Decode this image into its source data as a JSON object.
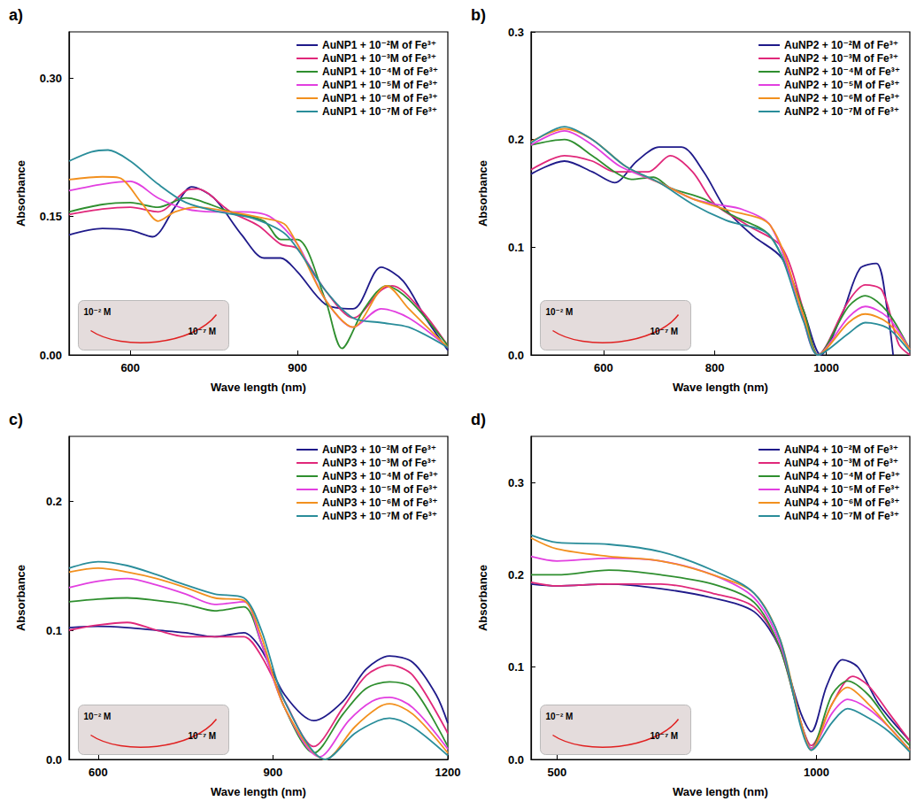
{
  "chart_data": [
    {
      "type": "line",
      "title": "a)",
      "x_label": "Wave length (nm)",
      "y_label": "Absorbance",
      "xlim": [
        490,
        1170
      ],
      "xticks": [
        600,
        900
      ],
      "ylim": [
        0,
        0.35
      ],
      "yticks": [
        {
          "value": 0,
          "label": "0.00"
        },
        0.15,
        {
          "value": 0.3,
          "label": "0.30"
        }
      ],
      "legend": "upper right",
      "grid": false,
      "annotations": [
        "10⁻² M",
        "10⁻⁷ M"
      ],
      "series": [
        {
          "name": "AuNP1 + 10⁻²M of Fe³⁺",
          "color": "#1f1a8a",
          "x": [
            490,
            550,
            600,
            640,
            680,
            710,
            750,
            800,
            840,
            870,
            900,
            950,
            1000,
            1050,
            1090,
            1130,
            1170
          ],
          "values": [
            0.13,
            0.137,
            0.135,
            0.128,
            0.16,
            0.182,
            0.17,
            0.13,
            0.105,
            0.105,
            0.09,
            0.055,
            0.05,
            0.095,
            0.08,
            0.04,
            0.005
          ]
        },
        {
          "name": "AuNP1 + 10⁻³M of Fe³⁺",
          "color": "#e0287a",
          "x": [
            490,
            550,
            600,
            650,
            700,
            720,
            780,
            830,
            870,
            900,
            950,
            1000,
            1050,
            1070,
            1120,
            1170
          ],
          "values": [
            0.152,
            0.158,
            0.16,
            0.155,
            0.178,
            0.18,
            0.155,
            0.14,
            0.12,
            0.115,
            0.07,
            0.04,
            0.07,
            0.075,
            0.05,
            0.01
          ]
        },
        {
          "name": "AuNP1 + 10⁻⁴M of Fe³⁺",
          "color": "#2f8f2f",
          "x": [
            490,
            550,
            600,
            650,
            700,
            720,
            780,
            840,
            870,
            900,
            950,
            980,
            1020,
            1060,
            1100,
            1170
          ],
          "values": [
            0.155,
            0.163,
            0.165,
            0.16,
            0.17,
            0.168,
            0.155,
            0.145,
            0.125,
            0.125,
            0.06,
            0.007,
            0.05,
            0.075,
            0.06,
            0.01
          ]
        },
        {
          "name": "AuNP1 + 10⁻⁵M of Fe³⁺",
          "color": "#e23fe0",
          "x": [
            490,
            550,
            600,
            650,
            700,
            750,
            800,
            850,
            900,
            950,
            1000,
            1050,
            1100,
            1170
          ],
          "values": [
            0.178,
            0.185,
            0.188,
            0.17,
            0.158,
            0.155,
            0.155,
            0.15,
            0.12,
            0.06,
            0.03,
            0.05,
            0.04,
            0.008
          ]
        },
        {
          "name": "AuNP1 + 10⁻⁶M of Fe³⁺",
          "color": "#f2901e",
          "x": [
            490,
            550,
            580,
            620,
            650,
            680,
            720,
            780,
            840,
            880,
            950,
            1000,
            1060,
            1100,
            1170
          ],
          "values": [
            0.19,
            0.193,
            0.192,
            0.165,
            0.145,
            0.155,
            0.16,
            0.155,
            0.148,
            0.14,
            0.06,
            0.03,
            0.075,
            0.05,
            0.008
          ]
        },
        {
          "name": "AuNP1 + 10⁻⁷M of Fe³⁺",
          "color": "#2a8d9a",
          "x": [
            490,
            530,
            560,
            600,
            650,
            700,
            760,
            820,
            880,
            950,
            1000,
            1050,
            1100,
            1170
          ],
          "values": [
            0.21,
            0.22,
            0.222,
            0.21,
            0.185,
            0.165,
            0.155,
            0.148,
            0.13,
            0.07,
            0.04,
            0.035,
            0.03,
            0.008
          ]
        }
      ]
    },
    {
      "type": "line",
      "title": "b)",
      "x_label": "Wave length (nm)",
      "y_label": "Absorbance",
      "xlim": [
        470,
        1150
      ],
      "xticks": [
        600,
        800,
        1000
      ],
      "ylim": [
        0,
        0.3
      ],
      "yticks": [
        {
          "value": 0,
          "label": "0.0"
        },
        0.1,
        0.2,
        0.3
      ],
      "legend": "upper right",
      "grid": false,
      "annotations": [
        "10⁻² M",
        "10⁻⁷ M"
      ],
      "series": [
        {
          "name": "AuNP2 + 10⁻²M of Fe³⁺",
          "color": "#1f1a8a",
          "x": [
            470,
            530,
            580,
            620,
            660,
            700,
            740,
            780,
            820,
            870,
            920,
            960,
            990,
            1030,
            1060,
            1090,
            1110,
            1120
          ],
          "values": [
            0.168,
            0.18,
            0.17,
            0.16,
            0.18,
            0.193,
            0.193,
            0.17,
            0.135,
            0.11,
            0.09,
            0.04,
            0,
            0.04,
            0.08,
            0.085,
            0.04,
            0
          ]
        },
        {
          "name": "AuNP2 + 10⁻³M of Fe³⁺",
          "color": "#e0287a",
          "x": [
            470,
            530,
            580,
            620,
            680,
            720,
            760,
            800,
            860,
            920,
            960,
            985,
            1040,
            1070,
            1100,
            1130,
            1150
          ],
          "values": [
            0.172,
            0.185,
            0.18,
            0.17,
            0.17,
            0.185,
            0.17,
            0.14,
            0.12,
            0.1,
            0.04,
            0,
            0.05,
            0.065,
            0.06,
            0.01,
            0
          ]
        },
        {
          "name": "AuNP2 + 10⁻⁴M of Fe³⁺",
          "color": "#2f8f2f",
          "x": [
            470,
            530,
            580,
            620,
            650,
            690,
            720,
            780,
            830,
            900,
            960,
            985,
            1040,
            1070,
            1110,
            1150
          ],
          "values": [
            0.195,
            0.2,
            0.185,
            0.17,
            0.163,
            0.165,
            0.155,
            0.145,
            0.13,
            0.11,
            0.04,
            0,
            0.045,
            0.055,
            0.04,
            0.005
          ]
        },
        {
          "name": "AuNP2 + 10⁻⁵M of Fe³⁺",
          "color": "#e23fe0",
          "x": [
            470,
            530,
            580,
            630,
            700,
            760,
            800,
            850,
            900,
            950,
            985,
            1040,
            1070,
            1110,
            1150
          ],
          "values": [
            0.195,
            0.208,
            0.195,
            0.175,
            0.16,
            0.145,
            0.14,
            0.135,
            0.12,
            0.05,
            0,
            0.035,
            0.045,
            0.035,
            0.005
          ]
        },
        {
          "name": "AuNP2 + 10⁻⁶M of Fe³⁺",
          "color": "#f2901e",
          "x": [
            470,
            530,
            580,
            640,
            700,
            760,
            820,
            900,
            960,
            985,
            1040,
            1070,
            1110,
            1150
          ],
          "values": [
            0.198,
            0.21,
            0.2,
            0.175,
            0.16,
            0.145,
            0.135,
            0.12,
            0.035,
            0,
            0.03,
            0.038,
            0.03,
            0.005
          ]
        },
        {
          "name": "AuNP2 + 10⁻⁷M of Fe³⁺",
          "color": "#2a8d9a",
          "x": [
            470,
            530,
            580,
            640,
            700,
            760,
            820,
            900,
            960,
            985,
            1040,
            1070,
            1110,
            1150
          ],
          "values": [
            0.197,
            0.212,
            0.2,
            0.175,
            0.16,
            0.14,
            0.125,
            0.11,
            0.03,
            0,
            0.02,
            0.03,
            0.025,
            0.003
          ]
        }
      ]
    },
    {
      "type": "line",
      "title": "c)",
      "x_label": "Wave length (nm)",
      "y_label": "Absorbance",
      "xlim": [
        550,
        1200
      ],
      "xticks": [
        600,
        900,
        1200
      ],
      "ylim": [
        0,
        0.25
      ],
      "yticks": [
        {
          "value": 0,
          "label": "0.0"
        },
        0.1,
        0.2
      ],
      "legend": "upper right",
      "grid": false,
      "annotations": [
        "10⁻² M",
        "10⁻⁷ M"
      ],
      "series": [
        {
          "name": "AuNP3 + 10⁻²M of Fe³⁺",
          "color": "#1f1a8a",
          "x": [
            550,
            600,
            650,
            700,
            750,
            800,
            850,
            880,
            920,
            970,
            1020,
            1060,
            1100,
            1140,
            1180,
            1200
          ],
          "values": [
            0.102,
            0.103,
            0.102,
            0.1,
            0.098,
            0.095,
            0.098,
            0.085,
            0.05,
            0.03,
            0.045,
            0.07,
            0.08,
            0.075,
            0.05,
            0.028
          ]
        },
        {
          "name": "AuNP3 + 10⁻³M of Fe³⁺",
          "color": "#e0287a",
          "x": [
            550,
            600,
            650,
            700,
            750,
            800,
            850,
            880,
            920,
            970,
            1020,
            1060,
            1100,
            1140,
            1200
          ],
          "values": [
            0.1,
            0.104,
            0.106,
            0.1,
            0.095,
            0.095,
            0.095,
            0.08,
            0.045,
            0.01,
            0.04,
            0.065,
            0.073,
            0.065,
            0.02
          ]
        },
        {
          "name": "AuNP3 + 10⁻⁴M of Fe³⁺",
          "color": "#2f8f2f",
          "x": [
            550,
            600,
            650,
            700,
            750,
            800,
            850,
            880,
            920,
            970,
            1020,
            1060,
            1100,
            1140,
            1200
          ],
          "values": [
            0.122,
            0.124,
            0.125,
            0.123,
            0.12,
            0.115,
            0.118,
            0.09,
            0.04,
            0.005,
            0.035,
            0.055,
            0.06,
            0.055,
            0.01
          ]
        },
        {
          "name": "AuNP3 + 10⁻⁵M of Fe³⁺",
          "color": "#e23fe0",
          "x": [
            550,
            600,
            650,
            700,
            750,
            800,
            850,
            880,
            920,
            980,
            1030,
            1070,
            1100,
            1140,
            1200
          ],
          "values": [
            0.133,
            0.138,
            0.14,
            0.135,
            0.128,
            0.12,
            0.122,
            0.09,
            0.04,
            0.002,
            0.03,
            0.045,
            0.048,
            0.04,
            0.008
          ]
        },
        {
          "name": "AuNP3 + 10⁻⁶M of Fe³⁺",
          "color": "#f2901e",
          "x": [
            550,
            600,
            650,
            700,
            750,
            800,
            850,
            880,
            920,
            990,
            1040,
            1080,
            1100,
            1140,
            1200
          ],
          "values": [
            0.145,
            0.148,
            0.145,
            0.14,
            0.133,
            0.125,
            0.123,
            0.095,
            0.04,
            0,
            0.025,
            0.04,
            0.043,
            0.035,
            0.005
          ]
        },
        {
          "name": "AuNP3 + 10⁻⁷M of Fe³⁺",
          "color": "#2a8d9a",
          "x": [
            550,
            600,
            650,
            700,
            750,
            800,
            850,
            880,
            920,
            990,
            1040,
            1080,
            1100,
            1140,
            1200
          ],
          "values": [
            0.148,
            0.153,
            0.15,
            0.143,
            0.135,
            0.128,
            0.125,
            0.1,
            0.045,
            0,
            0.02,
            0.03,
            0.032,
            0.025,
            0.003
          ]
        }
      ]
    },
    {
      "type": "line",
      "title": "d)",
      "x_label": "Wave length (nm)",
      "y_label": "Absorbance",
      "xlim": [
        450,
        1180
      ],
      "xticks": [
        500,
        1000
      ],
      "ylim": [
        0,
        0.35
      ],
      "yticks": [
        {
          "value": 0,
          "label": "0.0"
        },
        0.1,
        0.2,
        0.3
      ],
      "legend": "upper right",
      "grid": false,
      "annotations": [
        "10⁻² M",
        "10⁻⁷ M"
      ],
      "series": [
        {
          "name": "AuNP4 + 10⁻²M of Fe³⁺",
          "color": "#1f1a8a",
          "x": [
            450,
            500,
            600,
            700,
            800,
            880,
            930,
            970,
            990,
            1020,
            1050,
            1080,
            1120,
            1180
          ],
          "values": [
            0.19,
            0.188,
            0.19,
            0.185,
            0.175,
            0.16,
            0.12,
            0.05,
            0.03,
            0.08,
            0.108,
            0.1,
            0.06,
            0.02
          ]
        },
        {
          "name": "AuNP4 + 10⁻³M of Fe³⁺",
          "color": "#e0287a",
          "x": [
            450,
            500,
            600,
            700,
            800,
            880,
            930,
            970,
            990,
            1030,
            1070,
            1100,
            1140,
            1180
          ],
          "values": [
            0.192,
            0.188,
            0.19,
            0.19,
            0.18,
            0.165,
            0.12,
            0.04,
            0.015,
            0.06,
            0.09,
            0.08,
            0.05,
            0.02
          ]
        },
        {
          "name": "AuNP4 + 10⁻⁴M of Fe³⁺",
          "color": "#2f8f2f",
          "x": [
            450,
            500,
            600,
            700,
            800,
            880,
            930,
            970,
            990,
            1030,
            1060,
            1100,
            1140,
            1180
          ],
          "values": [
            0.2,
            0.2,
            0.205,
            0.2,
            0.19,
            0.17,
            0.12,
            0.04,
            0.012,
            0.07,
            0.085,
            0.07,
            0.04,
            0.015
          ]
        },
        {
          "name": "AuNP4 + 10⁻⁵M of Fe³⁺",
          "color": "#e23fe0",
          "x": [
            450,
            500,
            600,
            700,
            800,
            880,
            930,
            970,
            990,
            1030,
            1060,
            1100,
            1140,
            1180
          ],
          "values": [
            0.22,
            0.215,
            0.218,
            0.215,
            0.2,
            0.175,
            0.125,
            0.04,
            0.012,
            0.05,
            0.065,
            0.055,
            0.035,
            0.01
          ]
        },
        {
          "name": "AuNP4 + 10⁻⁶M of Fe³⁺",
          "color": "#f2901e",
          "x": [
            450,
            500,
            600,
            700,
            800,
            880,
            930,
            970,
            990,
            1030,
            1060,
            1100,
            1140,
            1180
          ],
          "values": [
            0.24,
            0.228,
            0.22,
            0.215,
            0.2,
            0.18,
            0.13,
            0.04,
            0.01,
            0.06,
            0.078,
            0.06,
            0.035,
            0.01
          ]
        },
        {
          "name": "AuNP4 + 10⁻⁷M of Fe³⁺",
          "color": "#2a8d9a",
          "x": [
            450,
            500,
            600,
            700,
            800,
            880,
            930,
            970,
            990,
            1030,
            1060,
            1100,
            1140,
            1180
          ],
          "values": [
            0.243,
            0.235,
            0.233,
            0.225,
            0.205,
            0.18,
            0.13,
            0.035,
            0.01,
            0.04,
            0.055,
            0.045,
            0.03,
            0.008
          ]
        }
      ]
    }
  ]
}
